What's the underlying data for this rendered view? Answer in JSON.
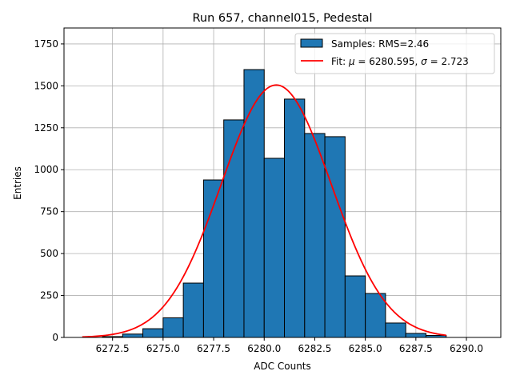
{
  "chart_data": {
    "type": "bar",
    "title": "Run 657, channel015, Pedestal",
    "xlabel": "ADC Counts",
    "ylabel": "Entries",
    "xlim": [
      6270.1,
      6291.7
    ],
    "ylim": [
      0,
      1845
    ],
    "grid": true,
    "legend_placement": "top-right",
    "bin_edges": [
      6272,
      6273,
      6274,
      6275,
      6276,
      6277,
      6278,
      6279,
      6280,
      6281,
      6282,
      6283,
      6284,
      6285,
      6286,
      6287,
      6288,
      6289
    ],
    "values": [
      5,
      20,
      52,
      117,
      324,
      939,
      1297,
      1597,
      1068,
      1421,
      1216,
      1197,
      367,
      262,
      86,
      24,
      12
    ],
    "xticks": [
      6272.5,
      6275.0,
      6277.5,
      6280.0,
      6282.5,
      6285.0,
      6287.5,
      6290.0
    ],
    "xtick_labels": [
      "6272.5",
      "6275.0",
      "6277.5",
      "6280.0",
      "6282.5",
      "6285.0",
      "6287.5",
      "6290.0"
    ],
    "yticks": [
      0,
      250,
      500,
      750,
      1000,
      1250,
      1500,
      1750
    ],
    "ytick_labels": [
      "0",
      "250",
      "500",
      "750",
      "1000",
      "1250",
      "1500",
      "1750"
    ],
    "fit": {
      "mu": 6280.595,
      "sigma": 2.723,
      "amplitude": 1505,
      "x_range": [
        6271,
        6289
      ]
    },
    "legend": [
      {
        "label": "Samples: RMS=2.46",
        "color": "#1f77b4",
        "kind": "patch"
      },
      {
        "label_prefix": "Fit: ",
        "mu_symbol": "μ",
        "mu_text": " = 6280.595, ",
        "sigma_symbol": "σ",
        "sigma_text": " = 2.723",
        "color": "#ff0000",
        "kind": "line"
      }
    ]
  }
}
